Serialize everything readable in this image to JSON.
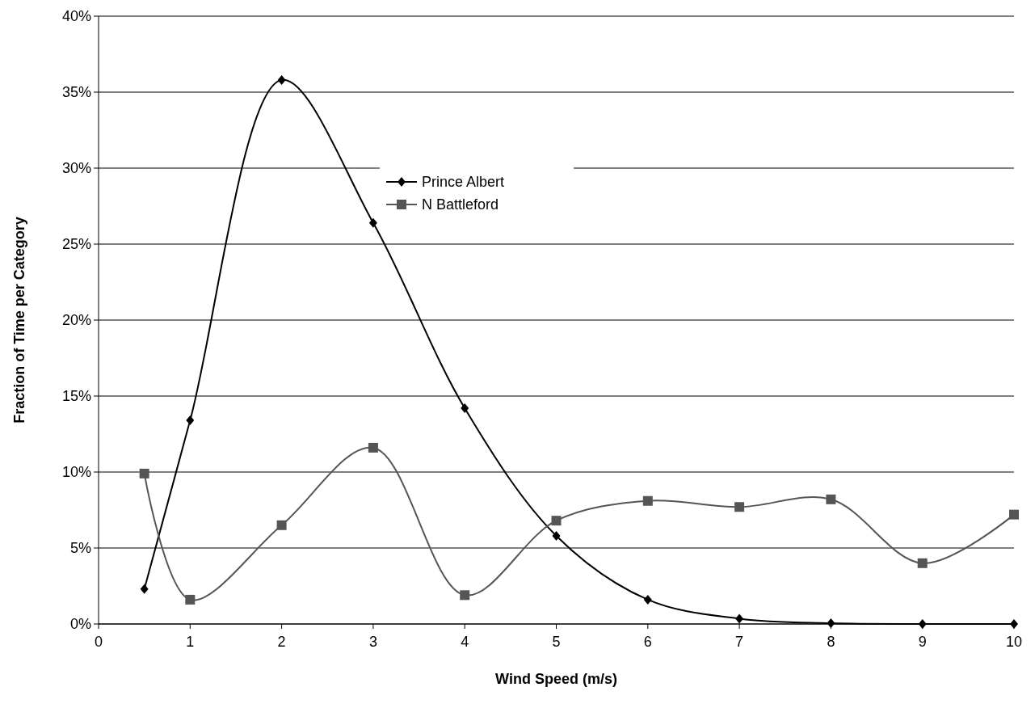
{
  "chart_data": {
    "type": "line",
    "xlabel": "Wind Speed (m/s)",
    "ylabel": "Fraction of Time per Category",
    "x": [
      0.5,
      1,
      2,
      3,
      4,
      5,
      6,
      7,
      8,
      9,
      10
    ],
    "series": [
      {
        "name": "Prince Albert",
        "color": "#000000",
        "marker": "diamond",
        "values": [
          2.3,
          13.4,
          35.8,
          26.4,
          14.2,
          5.8,
          1.6,
          0.35,
          0.05,
          0,
          0
        ]
      },
      {
        "name": "N Battleford",
        "color": "#555555",
        "marker": "square",
        "values": [
          9.9,
          1.6,
          6.5,
          11.6,
          1.9,
          6.8,
          8.1,
          7.7,
          8.2,
          4.0,
          7.2
        ]
      }
    ],
    "xlim": [
      0,
      10
    ],
    "xticks": [
      0,
      1,
      2,
      3,
      4,
      5,
      6,
      7,
      8,
      9,
      10
    ],
    "ylim": [
      0,
      40
    ],
    "yticks": [
      {
        "value": 0,
        "label": "0%"
      },
      {
        "value": 5,
        "label": "5%"
      },
      {
        "value": 10,
        "label": "10%"
      },
      {
        "value": 15,
        "label": "15%"
      },
      {
        "value": 20,
        "label": "20%"
      },
      {
        "value": 25,
        "label": "25%"
      },
      {
        "value": 30,
        "label": "30%"
      },
      {
        "value": 35,
        "label": "35%"
      },
      {
        "value": 40,
        "label": "40%"
      }
    ],
    "grid": "y",
    "legend": "top",
    "line_style": "solid"
  }
}
